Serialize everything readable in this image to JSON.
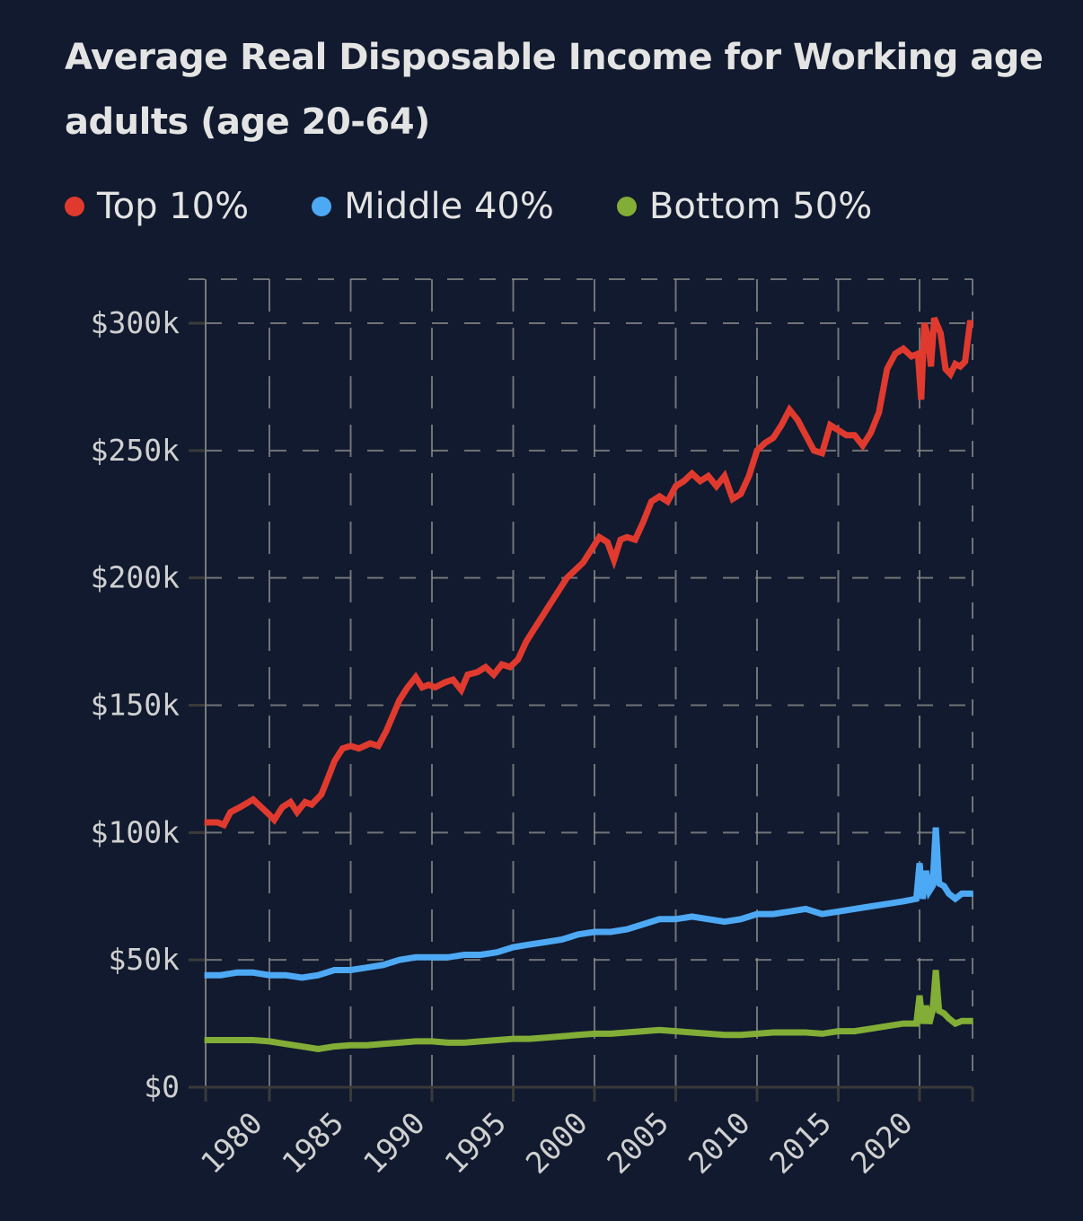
{
  "chart_data": {
    "type": "line",
    "title": "Average Real Disposable Income for Working age adults (age 20-64)",
    "xlabel": "",
    "ylabel": "",
    "xlim": [
      1976,
      2023.3
    ],
    "ylim": [
      0,
      317
    ],
    "grid": true,
    "legend_position": "top-left",
    "x_ticks": [
      1980,
      1985,
      1990,
      1995,
      2000,
      2005,
      2010,
      2015,
      2020
    ],
    "x_tick_labels": [
      "1980",
      "1985",
      "1990",
      "1995",
      "2000",
      "2005",
      "2010",
      "2015",
      "2020"
    ],
    "y_ticks": [
      0,
      50,
      100,
      150,
      200,
      250,
      300
    ],
    "y_tick_labels": [
      "$0",
      "$50k",
      "$100k",
      "$150k",
      "$200k",
      "$250k",
      "$300k"
    ],
    "y_unit": "thousands of dollars",
    "series": [
      {
        "name": "Top 10%",
        "color": "#e03a2f",
        "x": [
          1976,
          1976.8,
          1977.2,
          1977.6,
          1978.2,
          1979,
          1979.5,
          1980,
          1980.3,
          1980.8,
          1981.3,
          1981.7,
          1982.2,
          1982.6,
          1983.2,
          1983.7,
          1984,
          1984.5,
          1985,
          1985.5,
          1986.2,
          1986.7,
          1987.2,
          1987.6,
          1988,
          1988.5,
          1989,
          1989.4,
          1989.8,
          1990.2,
          1990.8,
          1991.3,
          1991.8,
          1992.2,
          1992.8,
          1993.3,
          1993.8,
          1994.3,
          1994.8,
          1995.3,
          1995.8,
          1996.3,
          1996.8,
          1997.3,
          1997.8,
          1998.3,
          1998.8,
          1999.3,
          1999.8,
          2000.3,
          2000.8,
          2001.2,
          2001.6,
          2002,
          2002.5,
          2003,
          2003.5,
          2004,
          2004.5,
          2005,
          2005.5,
          2006,
          2006.5,
          2007,
          2007.5,
          2008,
          2008.5,
          2009,
          2009.5,
          2010,
          2010.5,
          2011,
          2011.5,
          2012,
          2012.5,
          2013,
          2013.5,
          2014,
          2014.5,
          2015,
          2015.5,
          2016,
          2016.5,
          2017,
          2017.5,
          2018,
          2018.5,
          2019,
          2019.5,
          2019.9,
          2020.1,
          2020.3,
          2020.5,
          2020.7,
          2020.9,
          2021.1,
          2021.3,
          2021.6,
          2021.9,
          2022.2,
          2022.5,
          2022.8,
          2023.1,
          2023.3
        ],
        "values": [
          104,
          104,
          103,
          108,
          110,
          113,
          110,
          107,
          105,
          110,
          112,
          108,
          112,
          111,
          115,
          123,
          128,
          133,
          134,
          133,
          135,
          134,
          140,
          146,
          152,
          157,
          161,
          157,
          158,
          157,
          159,
          160,
          156,
          162,
          163,
          165,
          162,
          166,
          165,
          168,
          175,
          180,
          185,
          190,
          195,
          200,
          203,
          206,
          211,
          216,
          214,
          207,
          215,
          216,
          215,
          222,
          230,
          232,
          230,
          236,
          238,
          241,
          238,
          240,
          236,
          240,
          231,
          233,
          240,
          250,
          253,
          255,
          260,
          266,
          262,
          256,
          250,
          249,
          260,
          258,
          256,
          256,
          252,
          257,
          265,
          282,
          288,
          290,
          287,
          288,
          270,
          300,
          295,
          283,
          302,
          299,
          296,
          282,
          280,
          284,
          283,
          285,
          300,
          300
        ]
      },
      {
        "name": "Middle 40%",
        "color": "#4ea9f5",
        "x": [
          1976,
          1977,
          1978,
          1979,
          1980,
          1981,
          1982,
          1983,
          1984,
          1985,
          1986,
          1987,
          1988,
          1989,
          1990,
          1991,
          1992,
          1993,
          1994,
          1995,
          1996,
          1997,
          1998,
          1999,
          2000,
          2001,
          2002,
          2003,
          2004,
          2005,
          2006,
          2007,
          2008,
          2009,
          2010,
          2011,
          2012,
          2013,
          2014,
          2015,
          2016,
          2017,
          2018,
          2019,
          2019.8,
          2020.0,
          2020.2,
          2020.4,
          2020.6,
          2020.8,
          2021.0,
          2021.2,
          2021.5,
          2021.8,
          2022.2,
          2022.6,
          2023.0,
          2023.3
        ],
        "values": [
          44,
          44,
          45,
          45,
          44,
          44,
          43,
          44,
          46,
          46,
          47,
          48,
          50,
          51,
          51,
          51,
          52,
          52,
          53,
          55,
          56,
          57,
          58,
          60,
          61,
          61,
          62,
          64,
          66,
          66,
          67,
          66,
          65,
          66,
          68,
          68,
          69,
          70,
          68,
          69,
          70,
          71,
          72,
          73,
          74,
          88,
          74,
          85,
          77,
          79,
          102,
          80,
          79,
          76,
          74,
          76,
          76,
          76
        ]
      },
      {
        "name": "Bottom 50%",
        "color": "#82ad36",
        "x": [
          1976,
          1977,
          1978,
          1979,
          1980,
          1981,
          1982,
          1983,
          1984,
          1985,
          1986,
          1987,
          1988,
          1989,
          1990,
          1991,
          1992,
          1993,
          1994,
          1995,
          1996,
          1997,
          1998,
          1999,
          2000,
          2001,
          2002,
          2003,
          2004,
          2005,
          2006,
          2007,
          2008,
          2009,
          2010,
          2011,
          2012,
          2013,
          2014,
          2015,
          2016,
          2017,
          2018,
          2019,
          2019.8,
          2020.0,
          2020.2,
          2020.4,
          2020.6,
          2020.8,
          2021.0,
          2021.2,
          2021.5,
          2021.8,
          2022.2,
          2022.6,
          2023.0,
          2023.3
        ],
        "values": [
          18.5,
          18.5,
          18.5,
          18.5,
          18,
          17,
          16,
          15,
          16,
          16.5,
          16.5,
          17,
          17.5,
          18,
          18,
          17.5,
          17.5,
          18,
          18.5,
          19,
          19,
          19.5,
          20,
          20.5,
          21,
          21,
          21.5,
          22,
          22.5,
          22,
          21.5,
          21,
          20.5,
          20.5,
          21,
          21.5,
          21.5,
          21.5,
          21,
          22,
          22,
          23,
          24,
          25,
          25,
          36,
          25,
          32,
          25,
          30,
          46,
          30,
          29,
          27,
          25,
          26,
          26,
          26
        ]
      }
    ]
  },
  "title": "Average Real Disposable Income for Working age adults (age 20-64)",
  "legend": [
    {
      "label": "Top 10%",
      "color": "#e03a2f"
    },
    {
      "label": "Middle 40%",
      "color": "#4ea9f5"
    },
    {
      "label": "Bottom 50%",
      "color": "#82ad36"
    }
  ]
}
